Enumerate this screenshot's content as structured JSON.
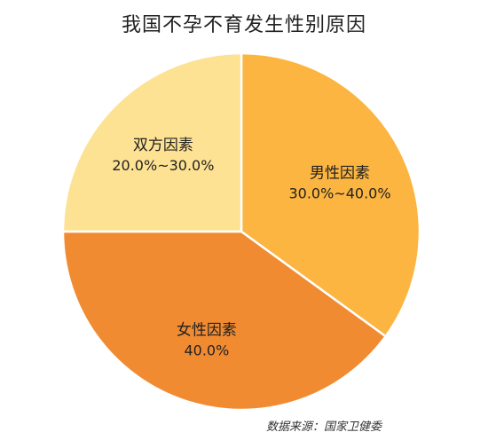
{
  "chart_data": {
    "type": "pie",
    "title": "我国不孕不育发生性别原因",
    "slices": [
      {
        "name": "男性因素",
        "label": "30.0%~40.0%",
        "value": 35,
        "color": "#FBB540"
      },
      {
        "name": "女性因素",
        "label": "40.0%",
        "value": 40,
        "color": "#F18B32"
      },
      {
        "name": "双方因素",
        "label": "20.0%~30.0%",
        "value": 25,
        "color": "#FDE293"
      }
    ],
    "source": "数据来源：国家卫健委"
  }
}
